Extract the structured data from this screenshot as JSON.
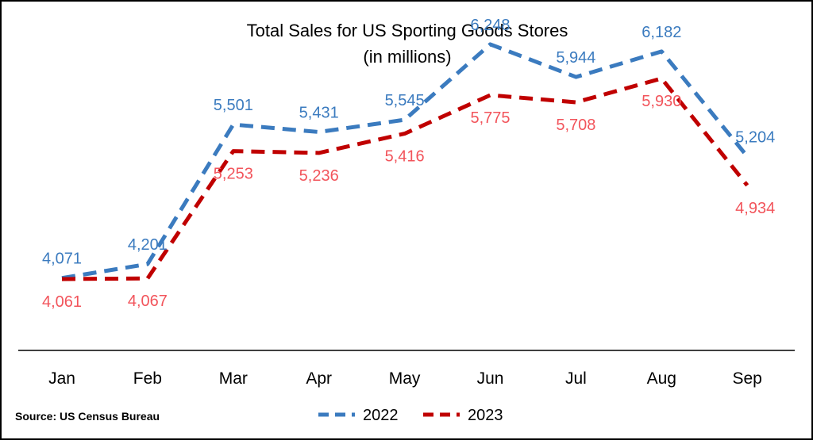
{
  "chart_data": {
    "type": "line",
    "title": "Total Sales for US Sporting Goods Stores",
    "subtitle": "(in millions)",
    "categories": [
      "Jan",
      "Feb",
      "Mar",
      "Apr",
      "May",
      "Jun",
      "Jul",
      "Aug",
      "Sep"
    ],
    "series": [
      {
        "name": "2022",
        "color": "#3b7bbf",
        "values": [
          4071,
          4201,
          5501,
          5431,
          5545,
          6248,
          5944,
          6182,
          5204
        ],
        "labels": [
          "4,071",
          "4,201",
          "5,501",
          "5,431",
          "5,545",
          "6,248",
          "5,944",
          "6,182",
          "5,204"
        ]
      },
      {
        "name": "2023",
        "color": "#c00000",
        "label_color": "#f2545b",
        "values": [
          4061,
          4067,
          5253,
          5236,
          5416,
          5775,
          5708,
          5930,
          4934
        ],
        "labels": [
          "4,061",
          "4,067",
          "5,253",
          "5,236",
          "5,416",
          "5,775",
          "5,708",
          "5,930",
          "4,934"
        ]
      }
    ],
    "line_style": "dashed",
    "grid": false,
    "legend": "bottom-center",
    "source": "Source: US Census Bureau"
  }
}
